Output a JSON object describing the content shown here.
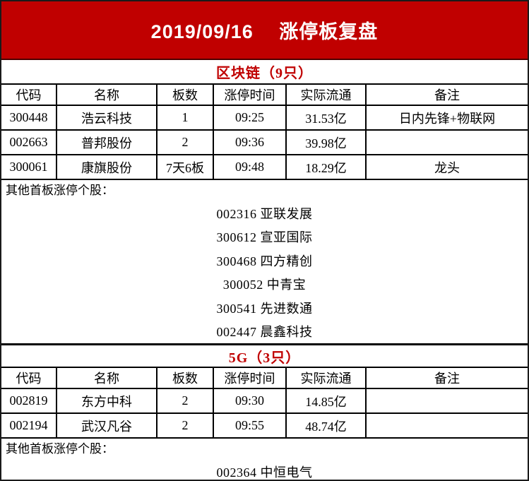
{
  "banner": {
    "title": "2019/09/16　 涨停板复盘",
    "bg_color": "#c00000",
    "text_color": "#ffffff"
  },
  "accent_red": "#c00000",
  "grid_color": "#000000",
  "table_columns": [
    "代码",
    "名称",
    "板数",
    "涨停时间",
    "实际流通",
    "备注"
  ],
  "sections": [
    {
      "title": "区块链（9只）",
      "rows": [
        {
          "code": "300448",
          "name": "浩云科技",
          "boards": "1",
          "time": "09:25",
          "float": "31.53亿",
          "note": "日内先锋+物联网"
        },
        {
          "code": "002663",
          "name": "普邦股份",
          "boards": "2",
          "time": "09:36",
          "float": "39.98亿",
          "note": ""
        },
        {
          "code": "300061",
          "name": "康旗股份",
          "boards": "7天6板",
          "time": "09:48",
          "float": "18.29亿",
          "note": "龙头"
        }
      ],
      "others_label": "其他首板涨停个股：",
      "others": [
        "002316 亚联发展",
        "300612 宣亚国际",
        "300468 四方精创",
        "300052 中青宝",
        "300541 先进数通",
        "002447 晨鑫科技"
      ]
    },
    {
      "title": "5G（3只）",
      "rows": [
        {
          "code": "002819",
          "name": "东方中科",
          "boards": "2",
          "time": "09:30",
          "float": "14.85亿",
          "note": ""
        },
        {
          "code": "002194",
          "name": "武汉凡谷",
          "boards": "2",
          "time": "09:55",
          "float": "48.74亿",
          "note": ""
        }
      ],
      "others_label": "其他首板涨停个股：",
      "others": [
        "002364 中恒电气"
      ]
    }
  ]
}
